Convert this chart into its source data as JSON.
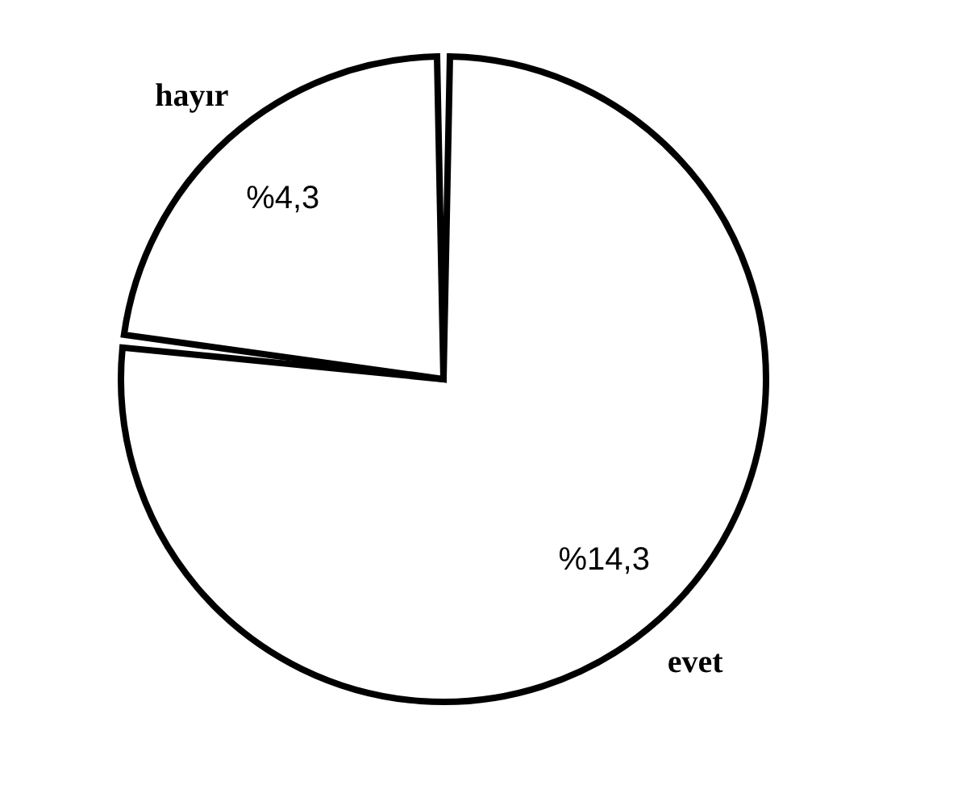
{
  "chart_data": {
    "type": "pie",
    "categories": [
      "evet",
      "hayır"
    ],
    "values": [
      14.3,
      4.3
    ],
    "colors": [
      "#ffffff",
      "#ffffff"
    ],
    "value_labels": [
      "%14,3",
      "%4,3"
    ]
  }
}
